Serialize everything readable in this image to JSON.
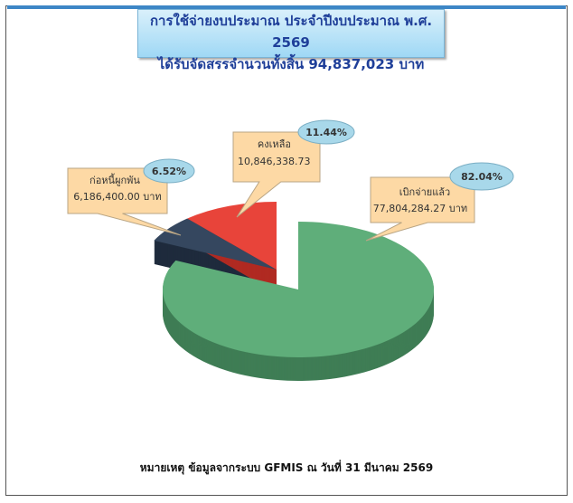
{
  "title": {
    "line1": "การใช้จ่ายงบประมาณ ประจำปีงบประมาณ พ.ศ. 2569",
    "line2": "ได้รับจัดสรรจำนวนทั้งสิ้น 94,837,023 บาท"
  },
  "footer": "หมายเหตุ  ข้อมูลจากระบบ  GFMIS  ณ วันที่  31 มีนาคม 2569",
  "chart_data": {
    "type": "pie",
    "style": "3d-exploded",
    "start": "top",
    "direction": "clockwise",
    "slices": [
      {
        "label": "เบิกจ่ายแล้ว",
        "amount": "77,804,284.27",
        "unit": "บาท",
        "value": 77804284.27,
        "percent": "82.04%",
        "color": "#5fae7a",
        "side_color": "#3f7d55",
        "exploded": false
      },
      {
        "label": "ก่อหนี้ผูกพัน",
        "amount": "6,186,400.00",
        "unit": "บาท",
        "value": 6186400.0,
        "percent": "6.52%",
        "color": "#35475f",
        "side_color": "#1e2b3c",
        "exploded": true
      },
      {
        "label": "คงเหลือ",
        "amount": "10,846,338.73",
        "unit": "",
        "value": 10846338.73,
        "percent": "11.44%",
        "color": "#e8443a",
        "side_color": "#b02a22",
        "exploded": true
      }
    ],
    "callout_color": "#fdd9a5",
    "percent_bubble_color": "#a8d8ea"
  }
}
